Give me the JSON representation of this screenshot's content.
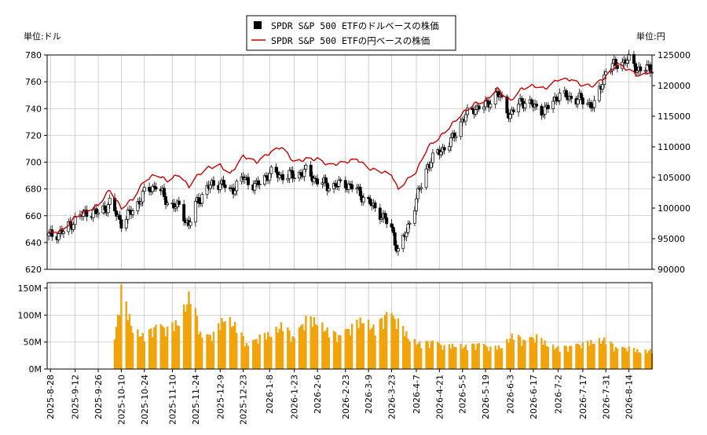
{
  "legend": {
    "dollar_label": "SPDR S&P 500 ETFのドルベースの株価",
    "yen_label": "SPDR S&P 500 ETFの円ベースの株価"
  },
  "units": {
    "left": "単位:ドル",
    "right": "単位:円"
  },
  "colors": {
    "yen_line": "#cc0000",
    "volume_bar": "#f0a30a",
    "candle": "#000000",
    "grid": "#b0b0b0"
  },
  "chart_data": {
    "type": "candlestick+line+bar",
    "x_range": [
      "2025-08-26",
      "2026-08-28"
    ],
    "x_tick_labels": [
      "2025-8-28",
      "2025-9-12",
      "2025-9-26",
      "2025-10-10",
      "2025-10-24",
      "2025-11-10",
      "2025-11-24",
      "2025-12-9",
      "2025-12-23",
      "2026-1-8",
      "2026-1-23",
      "2026-2-6",
      "2026-2-23",
      "2026-3-9",
      "2026-3-23",
      "2026-4-7",
      "2026-4-21",
      "2026-5-5",
      "2026-5-19",
      "2026-6-3",
      "2026-6-17",
      "2026-7-2",
      "2026-7-17",
      "2026-7-31",
      "2026-8-14"
    ],
    "left_axis": {
      "ylim": [
        620,
        780
      ],
      "ticks": [
        "620",
        "640",
        "660",
        "680",
        "700",
        "720",
        "740",
        "760",
        "780"
      ]
    },
    "right_axis": {
      "ylim": [
        90000,
        125000
      ],
      "ticks": [
        "90000",
        "95000",
        "100000",
        "105000",
        "110000",
        "115000",
        "120000",
        "125000"
      ]
    },
    "volume_axis": {
      "ylim": [
        0,
        160000000
      ],
      "ticks": [
        "0M",
        "50M",
        "100M",
        "150M"
      ]
    },
    "grid": true,
    "legend_position": "top-center",
    "dollar_close_series": [
      {
        "date": "2025-08-27",
        "value": 645
      },
      {
        "date": "2025-09-05",
        "value": 648
      },
      {
        "date": "2025-09-12",
        "value": 657
      },
      {
        "date": "2025-09-19",
        "value": 663
      },
      {
        "date": "2025-09-26",
        "value": 662
      },
      {
        "date": "2025-10-03",
        "value": 669
      },
      {
        "date": "2025-10-10",
        "value": 655
      },
      {
        "date": "2025-10-17",
        "value": 664
      },
      {
        "date": "2025-10-24",
        "value": 677
      },
      {
        "date": "2025-10-31",
        "value": 683
      },
      {
        "date": "2025-11-07",
        "value": 670
      },
      {
        "date": "2025-11-14",
        "value": 666
      },
      {
        "date": "2025-11-20",
        "value": 653
      },
      {
        "date": "2025-11-24",
        "value": 668
      },
      {
        "date": "2025-12-01",
        "value": 681
      },
      {
        "date": "2025-12-09",
        "value": 685
      },
      {
        "date": "2025-12-15",
        "value": 678
      },
      {
        "date": "2025-12-23",
        "value": 688
      },
      {
        "date": "2025-12-31",
        "value": 682
      },
      {
        "date": "2026-01-08",
        "value": 692
      },
      {
        "date": "2026-01-15",
        "value": 690
      },
      {
        "date": "2026-01-23",
        "value": 690
      },
      {
        "date": "2026-01-30",
        "value": 693
      },
      {
        "date": "2026-02-06",
        "value": 686
      },
      {
        "date": "2026-02-13",
        "value": 682
      },
      {
        "date": "2026-02-23",
        "value": 684
      },
      {
        "date": "2026-03-02",
        "value": 679
      },
      {
        "date": "2026-03-09",
        "value": 670
      },
      {
        "date": "2026-03-16",
        "value": 662
      },
      {
        "date": "2026-03-23",
        "value": 650
      },
      {
        "date": "2026-03-27",
        "value": 633
      },
      {
        "date": "2026-04-01",
        "value": 648
      },
      {
        "date": "2026-04-07",
        "value": 672
      },
      {
        "date": "2026-04-14",
        "value": 698
      },
      {
        "date": "2026-04-21",
        "value": 708
      },
      {
        "date": "2026-04-28",
        "value": 715
      },
      {
        "date": "2026-05-05",
        "value": 732
      },
      {
        "date": "2026-05-12",
        "value": 740
      },
      {
        "date": "2026-05-19",
        "value": 742
      },
      {
        "date": "2026-05-26",
        "value": 752
      },
      {
        "date": "2026-06-03",
        "value": 735
      },
      {
        "date": "2026-06-10",
        "value": 746
      },
      {
        "date": "2026-06-17",
        "value": 742
      },
      {
        "date": "2026-06-24",
        "value": 738
      },
      {
        "date": "2026-07-02",
        "value": 750
      },
      {
        "date": "2026-07-10",
        "value": 748
      },
      {
        "date": "2026-07-17",
        "value": 746
      },
      {
        "date": "2026-07-24",
        "value": 742
      },
      {
        "date": "2026-07-31",
        "value": 768
      },
      {
        "date": "2026-08-07",
        "value": 774
      },
      {
        "date": "2026-08-14",
        "value": 776
      },
      {
        "date": "2026-08-21",
        "value": 768
      },
      {
        "date": "2026-08-28",
        "value": 771
      }
    ],
    "yen_series": [
      {
        "date": "2025-08-27",
        "value": 95800
      },
      {
        "date": "2025-09-05",
        "value": 96500
      },
      {
        "date": "2025-09-12",
        "value": 98500
      },
      {
        "date": "2025-09-19",
        "value": 99500
      },
      {
        "date": "2025-09-26",
        "value": 100500
      },
      {
        "date": "2025-10-03",
        "value": 103000
      },
      {
        "date": "2025-10-10",
        "value": 100000
      },
      {
        "date": "2025-10-17",
        "value": 101500
      },
      {
        "date": "2025-10-24",
        "value": 104500
      },
      {
        "date": "2025-10-31",
        "value": 105500
      },
      {
        "date": "2025-11-07",
        "value": 104500
      },
      {
        "date": "2025-11-14",
        "value": 105500
      },
      {
        "date": "2025-11-20",
        "value": 103500
      },
      {
        "date": "2025-11-24",
        "value": 105000
      },
      {
        "date": "2025-12-01",
        "value": 106500
      },
      {
        "date": "2025-12-09",
        "value": 107000
      },
      {
        "date": "2025-12-15",
        "value": 105500
      },
      {
        "date": "2025-12-23",
        "value": 108500
      },
      {
        "date": "2025-12-31",
        "value": 107500
      },
      {
        "date": "2026-01-08",
        "value": 109000
      },
      {
        "date": "2026-01-15",
        "value": 110000
      },
      {
        "date": "2026-01-23",
        "value": 107500
      },
      {
        "date": "2026-01-30",
        "value": 108000
      },
      {
        "date": "2026-02-06",
        "value": 108000
      },
      {
        "date": "2026-02-13",
        "value": 107000
      },
      {
        "date": "2026-02-23",
        "value": 107500
      },
      {
        "date": "2026-03-02",
        "value": 108000
      },
      {
        "date": "2026-03-09",
        "value": 106500
      },
      {
        "date": "2026-03-16",
        "value": 106000
      },
      {
        "date": "2026-03-23",
        "value": 105500
      },
      {
        "date": "2026-03-27",
        "value": 103000
      },
      {
        "date": "2026-04-01",
        "value": 104500
      },
      {
        "date": "2026-04-07",
        "value": 106000
      },
      {
        "date": "2026-04-14",
        "value": 110000
      },
      {
        "date": "2026-04-21",
        "value": 111500
      },
      {
        "date": "2026-04-28",
        "value": 113500
      },
      {
        "date": "2026-05-05",
        "value": 115500
      },
      {
        "date": "2026-05-12",
        "value": 117000
      },
      {
        "date": "2026-05-19",
        "value": 117500
      },
      {
        "date": "2026-05-26",
        "value": 119500
      },
      {
        "date": "2026-06-03",
        "value": 117500
      },
      {
        "date": "2026-06-10",
        "value": 119500
      },
      {
        "date": "2026-06-17",
        "value": 120000
      },
      {
        "date": "2026-06-24",
        "value": 119500
      },
      {
        "date": "2026-07-02",
        "value": 121000
      },
      {
        "date": "2026-07-10",
        "value": 121000
      },
      {
        "date": "2026-07-17",
        "value": 120000
      },
      {
        "date": "2026-07-24",
        "value": 120000
      },
      {
        "date": "2026-07-31",
        "value": 121500
      },
      {
        "date": "2026-08-07",
        "value": 123500
      },
      {
        "date": "2026-08-14",
        "value": 122500
      },
      {
        "date": "2026-08-21",
        "value": 121500
      },
      {
        "date": "2026-08-28",
        "value": 122500
      }
    ],
    "volume_series_M": [
      {
        "date": "2025-10-06",
        "value": 55
      },
      {
        "date": "2025-10-10",
        "value": 159
      },
      {
        "date": "2025-10-17",
        "value": 80
      },
      {
        "date": "2025-10-24",
        "value": 65
      },
      {
        "date": "2025-10-31",
        "value": 85
      },
      {
        "date": "2025-11-07",
        "value": 80
      },
      {
        "date": "2025-11-14",
        "value": 95
      },
      {
        "date": "2025-11-21",
        "value": 153
      },
      {
        "date": "2025-11-28",
        "value": 60
      },
      {
        "date": "2025-12-05",
        "value": 70
      },
      {
        "date": "2025-12-12",
        "value": 105
      },
      {
        "date": "2025-12-19",
        "value": 85
      },
      {
        "date": "2025-12-26",
        "value": 45
      },
      {
        "date": "2026-01-02",
        "value": 65
      },
      {
        "date": "2026-01-09",
        "value": 70
      },
      {
        "date": "2026-01-16",
        "value": 90
      },
      {
        "date": "2026-01-23",
        "value": 60
      },
      {
        "date": "2026-01-30",
        "value": 100
      },
      {
        "date": "2026-02-06",
        "value": 95
      },
      {
        "date": "2026-02-13",
        "value": 75
      },
      {
        "date": "2026-02-20",
        "value": 65
      },
      {
        "date": "2026-02-27",
        "value": 85
      },
      {
        "date": "2026-03-06",
        "value": 100
      },
      {
        "date": "2026-03-13",
        "value": 80
      },
      {
        "date": "2026-03-20",
        "value": 110
      },
      {
        "date": "2026-03-27",
        "value": 95
      },
      {
        "date": "2026-04-03",
        "value": 60
      },
      {
        "date": "2026-04-10",
        "value": 50
      },
      {
        "date": "2026-04-17",
        "value": 55
      },
      {
        "date": "2026-04-24",
        "value": 45
      },
      {
        "date": "2026-05-01",
        "value": 48
      },
      {
        "date": "2026-05-08",
        "value": 45
      },
      {
        "date": "2026-05-15",
        "value": 50
      },
      {
        "date": "2026-05-22",
        "value": 42
      },
      {
        "date": "2026-05-29",
        "value": 45
      },
      {
        "date": "2026-06-05",
        "value": 70
      },
      {
        "date": "2026-06-12",
        "value": 55
      },
      {
        "date": "2026-06-19",
        "value": 65
      },
      {
        "date": "2026-06-26",
        "value": 48
      },
      {
        "date": "2026-07-03",
        "value": 42
      },
      {
        "date": "2026-07-10",
        "value": 45
      },
      {
        "date": "2026-07-17",
        "value": 50
      },
      {
        "date": "2026-07-24",
        "value": 55
      },
      {
        "date": "2026-07-31",
        "value": 60
      },
      {
        "date": "2026-08-07",
        "value": 40
      },
      {
        "date": "2026-08-14",
        "value": 42
      },
      {
        "date": "2026-08-21",
        "value": 35
      },
      {
        "date": "2026-08-28",
        "value": 38
      }
    ]
  }
}
